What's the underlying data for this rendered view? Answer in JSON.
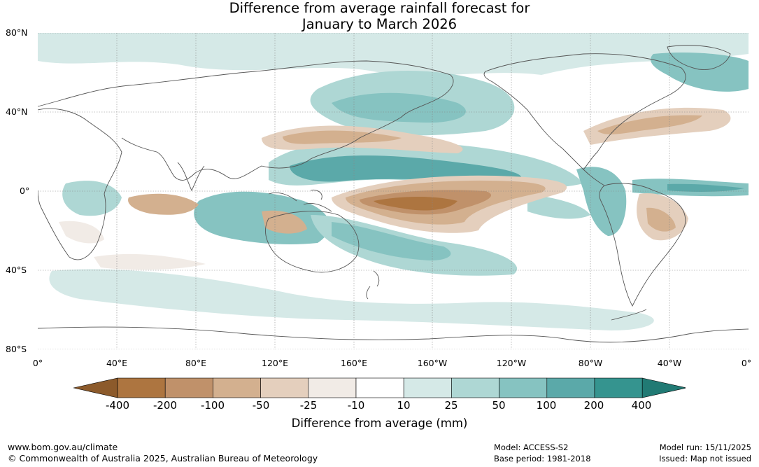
{
  "title": {
    "line1": "Difference from average rainfall forecast for",
    "line2": "January to March 2026"
  },
  "axes": {
    "lat_labels": [
      "80°N",
      "40°N",
      "0°",
      "40°S",
      "80°S"
    ],
    "lon_labels": [
      "0°",
      "40°E",
      "80°E",
      "120°E",
      "160°E",
      "160°W",
      "120°W",
      "80°W",
      "40°W",
      "0°"
    ]
  },
  "colorbar": {
    "tick_labels": [
      "-400",
      "-200",
      "-100",
      "-50",
      "-25",
      "-10",
      "10",
      "25",
      "50",
      "100",
      "200",
      "400"
    ],
    "colors": [
      "#8c5a2b",
      "#ad7540",
      "#c0916a",
      "#d3b08f",
      "#e4cfbd",
      "#f1ebe6",
      "#ffffff",
      "#d5e9e7",
      "#aed7d4",
      "#86c3c1",
      "#5ba9a9",
      "#35948f",
      "#217a74"
    ],
    "label": "Difference from average (mm)"
  },
  "footer": {
    "website": "www.bom.gov.au/climate",
    "copyright": "© Commonwealth of Australia 2025, Australian Bureau of Meteorology",
    "model": "Model: ACCESS-S2",
    "base_period": "Base period: 1981-2018",
    "model_run": "Model run: 15/11/2025",
    "issued": "Issued: Map not issued"
  }
}
